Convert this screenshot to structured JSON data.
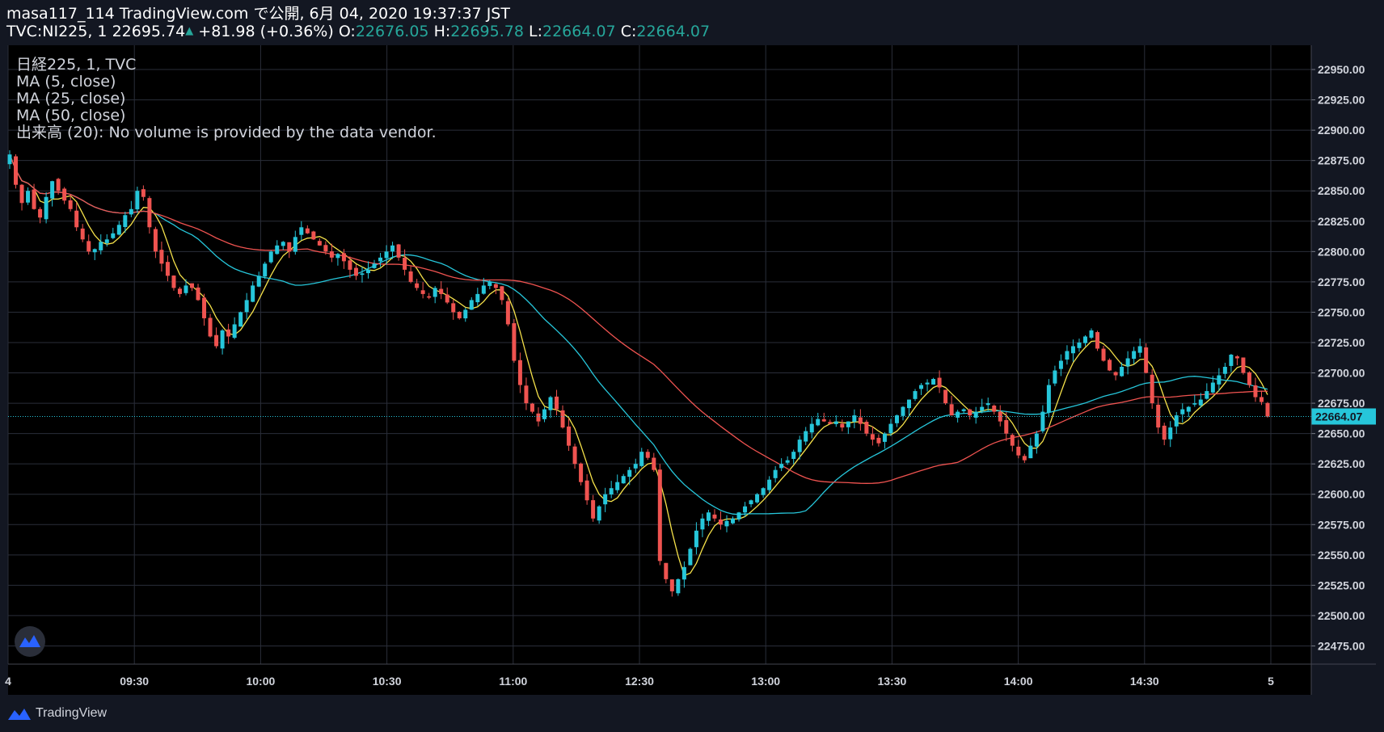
{
  "header": {
    "line1": "masa117_114 TradingView.com で公開, 6月 04, 2020 19:37:37 JST",
    "symbol": "TVC:NI225, 1",
    "price": "22695.74",
    "change": "+81.98 (+0.36%)",
    "o_label": "O:",
    "o_value": "22676.05",
    "h_label": "H:",
    "h_value": "22695.78",
    "l_label": "L:",
    "l_value": "22664.07",
    "c_label": "C:",
    "c_value": "22664.07"
  },
  "legend": [
    "日経225, 1, TVC",
    "MA (5, close)",
    "MA (25, close)",
    "MA (50, close)",
    "出来高 (20): No volume is provided by the data vendor."
  ],
  "footer": {
    "brand": "TradingView"
  },
  "colors": {
    "background": "#000000",
    "page": "#131722",
    "grid": "#2a2e39",
    "up": "#26c6da",
    "down": "#ef5350",
    "ma5": "#f5e14a",
    "ma25": "#26c6da",
    "ma50": "#ef5350",
    "last_price_bg": "#26c6da"
  },
  "chart_data": {
    "type": "candlestick",
    "y_ticks": [
      "22475.00",
      "22500.00",
      "22525.00",
      "22550.00",
      "22575.00",
      "22600.00",
      "22625.00",
      "22650.00",
      "22675.00",
      "22700.00",
      "22725.00",
      "22750.00",
      "22775.00",
      "22800.00",
      "22825.00",
      "22850.00",
      "22875.00",
      "22900.00",
      "22925.00",
      "22950.00"
    ],
    "ylim": [
      22460,
      22970
    ],
    "x_ticks": [
      {
        "label": "4",
        "minute": 0
      },
      {
        "label": "09:30",
        "minute": 30
      },
      {
        "label": "10:00",
        "minute": 60
      },
      {
        "label": "10:30",
        "minute": 90
      },
      {
        "label": "11:00",
        "minute": 120
      },
      {
        "label": "12:30",
        "minute": 150
      },
      {
        "label": "13:00",
        "minute": 180
      },
      {
        "label": "13:30",
        "minute": 210
      },
      {
        "label": "14:00",
        "minute": 240
      },
      {
        "label": "14:30",
        "minute": 270
      },
      {
        "label": "5",
        "minute": 300
      }
    ],
    "last_price": "22664.07",
    "close_series": [
      22880,
      22855,
      22840,
      22850,
      22835,
      22828,
      22845,
      22858,
      22850,
      22842,
      22835,
      22820,
      22810,
      22800,
      22802,
      22808,
      22810,
      22815,
      22822,
      22830,
      22835,
      22850,
      22845,
      22820,
      22800,
      22790,
      22780,
      22770,
      22765,
      22772,
      22770,
      22760,
      22745,
      22730,
      22722,
      22735,
      22730,
      22740,
      22750,
      22760,
      22772,
      22780,
      22790,
      22800,
      22805,
      22808,
      22800,
      22812,
      22820,
      22815,
      22810,
      22805,
      22800,
      22795,
      22798,
      22792,
      22785,
      22780,
      22782,
      22785,
      22790,
      22795,
      22800,
      22805,
      22795,
      22785,
      22775,
      22770,
      22765,
      22762,
      22770,
      22765,
      22758,
      22750,
      22745,
      22752,
      22760,
      22765,
      22772,
      22775,
      22770,
      22760,
      22740,
      22710,
      22690,
      22675,
      22668,
      22660,
      22670,
      22680,
      22670,
      22655,
      22640,
      22625,
      22610,
      22595,
      22580,
      22590,
      22600,
      22605,
      22610,
      22615,
      22620,
      22625,
      22635,
      22630,
      22620,
      22545,
      22530,
      22520,
      22530,
      22540,
      22555,
      22570,
      22580,
      22585,
      22580,
      22575,
      22578,
      22580,
      22585,
      22590,
      22595,
      22600,
      22605,
      22612,
      22620,
      22625,
      22628,
      22635,
      22645,
      22652,
      22658,
      22662,
      22660,
      22658,
      22660,
      22655,
      22660,
      22665,
      22658,
      22650,
      22645,
      22642,
      22650,
      22658,
      22665,
      22672,
      22678,
      22685,
      22690,
      22692,
      22695,
      22688,
      22675,
      22665,
      22668,
      22670,
      22665,
      22668,
      22672,
      22675,
      22668,
      22660,
      22650,
      22640,
      22632,
      22628,
      22640,
      22650,
      22668,
      22690,
      22702,
      22710,
      22718,
      22722,
      22725,
      22730,
      22735,
      22720,
      22710,
      22702,
      22698,
      22705,
      22712,
      22718,
      22722,
      22700,
      22675,
      22655,
      22645,
      22655,
      22665,
      22670,
      22672,
      22675,
      22678,
      22685,
      22692,
      22698,
      22705,
      22715,
      22712,
      22700,
      22690,
      22680,
      22676,
      22664
    ]
  }
}
